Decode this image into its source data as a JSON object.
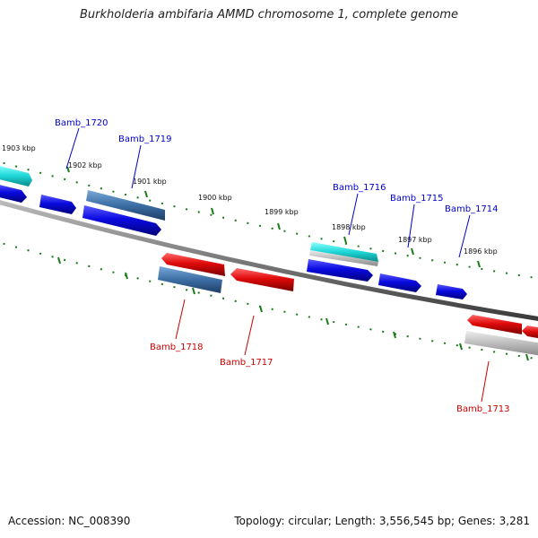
{
  "title": "Burkholderia ambifaria AMMD chromosome 1, complete genome",
  "kbp_labels": [
    "1903 kbp",
    "1902 kbp",
    "1901 kbp",
    "1900 kbp",
    "1899 kbp",
    "1898 kbp",
    "1897 kbp",
    "1896 kbp"
  ],
  "genes_forward": [
    "Bamb_1720",
    "Bamb_1719",
    "Bamb_1716",
    "Bamb_1715",
    "Bamb_1714"
  ],
  "genes_reverse": [
    "Bamb_1718",
    "Bamb_1717",
    "Bamb_1713"
  ],
  "colors": {
    "forward_label": "#0000cc",
    "reverse_label": "#cc0000",
    "forward_gene": "#0a0ae0",
    "reverse_gene": "#e00a0a",
    "tick": "#1a7a1a"
  },
  "footer": {
    "accession": "Accession: NC_008390",
    "topology": "Topology: circular; Length: 3,556,545 bp; Genes: 3,281"
  }
}
